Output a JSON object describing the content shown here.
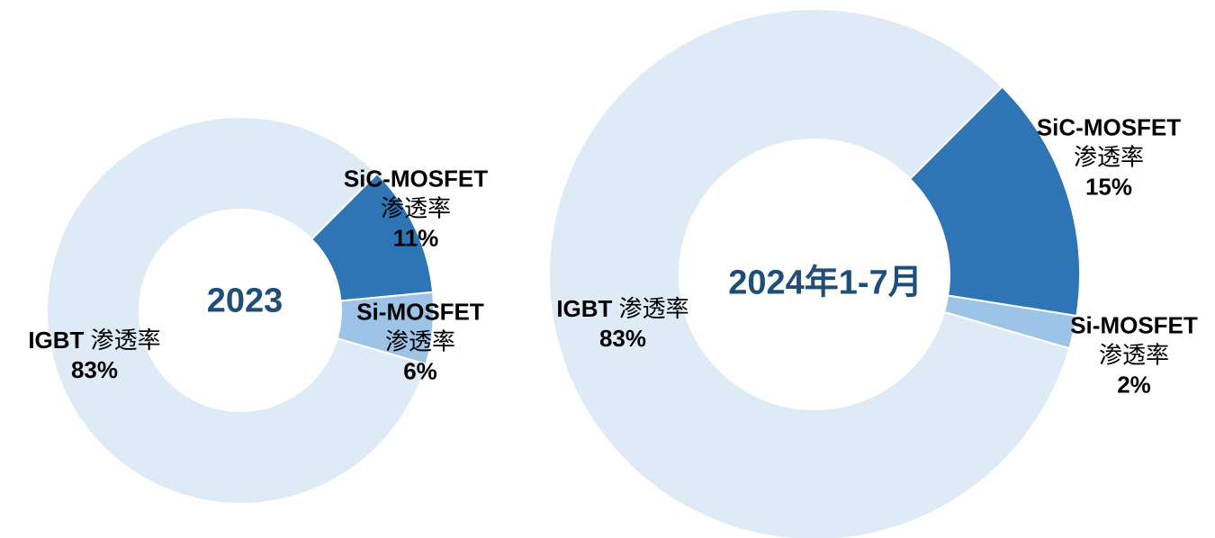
{
  "chart_data": [
    {
      "type": "donut",
      "title": "2023",
      "categories": [
        "SiC-MOSFET",
        "Si-MOSFET",
        "IGBT"
      ],
      "category_suffix": "渗透率",
      "values": [
        11,
        6,
        83
      ],
      "value_labels": [
        "11%",
        "6%",
        "83%"
      ],
      "colors": [
        "#2e75b6",
        "#9dc3e6",
        "#deebf7"
      ]
    },
    {
      "type": "donut",
      "title": "2024年1-7月",
      "categories": [
        "SiC-MOSFET",
        "Si-MOSFET",
        "IGBT"
      ],
      "category_suffix": "渗透率",
      "values": [
        15,
        2,
        83
      ],
      "value_labels": [
        "15%",
        "2%",
        "83%"
      ],
      "colors": [
        "#2e75b6",
        "#9dc3e6",
        "#deebf7"
      ]
    }
  ]
}
